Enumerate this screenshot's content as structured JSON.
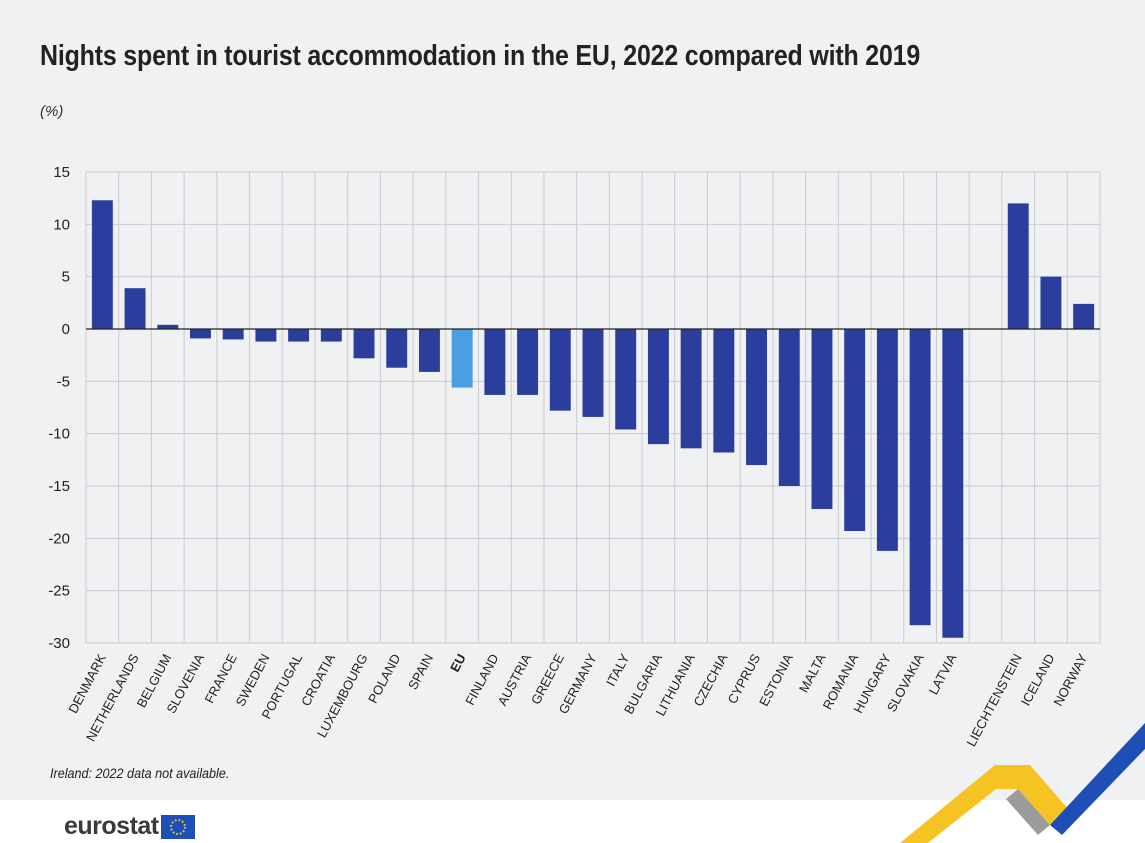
{
  "title": "Nights spent in tourist accommodation in the EU, 2022 compared with 2019",
  "unit": "(%)",
  "footnote": "Ireland: 2022 data not available.",
  "logo_text": "eurostat",
  "colors": {
    "bar": "#2b3e9e",
    "highlight": "#4a9fe3",
    "grid": "#c9cbd1",
    "axis": "#222222",
    "panel": "#f0f1f3"
  },
  "chart_data": {
    "type": "bar",
    "xlabel": "",
    "ylabel": "",
    "ylim": [
      -30,
      15
    ],
    "yticks": [
      15,
      10,
      5,
      0,
      -5,
      -10,
      -15,
      -20,
      -25,
      -30
    ],
    "grid": true,
    "categories": [
      "DENMARK",
      "NETHERLANDS",
      "BELGIUM",
      "SLOVENIA",
      "FRANCE",
      "SWEDEN",
      "PORTUGAL",
      "CROATIA",
      "LUXEMBOURG",
      "POLAND",
      "SPAIN",
      "EU",
      "FINLAND",
      "AUSTRIA",
      "GREECE",
      "GERMANY",
      "ITALY",
      "BULGARIA",
      "LITHUANIA",
      "CZECHIA",
      "CYPRUS",
      "ESTONIA",
      "MALTA",
      "ROMANIA",
      "HUNGARY",
      "SLOVAKIA",
      "LATVIA",
      "",
      "LIECHTENSTEIN",
      "ICELAND",
      "NORWAY"
    ],
    "values": [
      12.3,
      3.9,
      0.4,
      -0.9,
      -1.0,
      -1.2,
      -1.2,
      -1.2,
      -2.8,
      -3.7,
      -4.1,
      -5.6,
      -6.3,
      -6.3,
      -7.8,
      -8.4,
      -9.6,
      -11.0,
      -11.4,
      -11.8,
      -13.0,
      -15.0,
      -17.2,
      -19.3,
      -21.2,
      -28.3,
      -29.5,
      null,
      12.0,
      5.0,
      2.4
    ],
    "highlight": [
      "EU"
    ]
  }
}
